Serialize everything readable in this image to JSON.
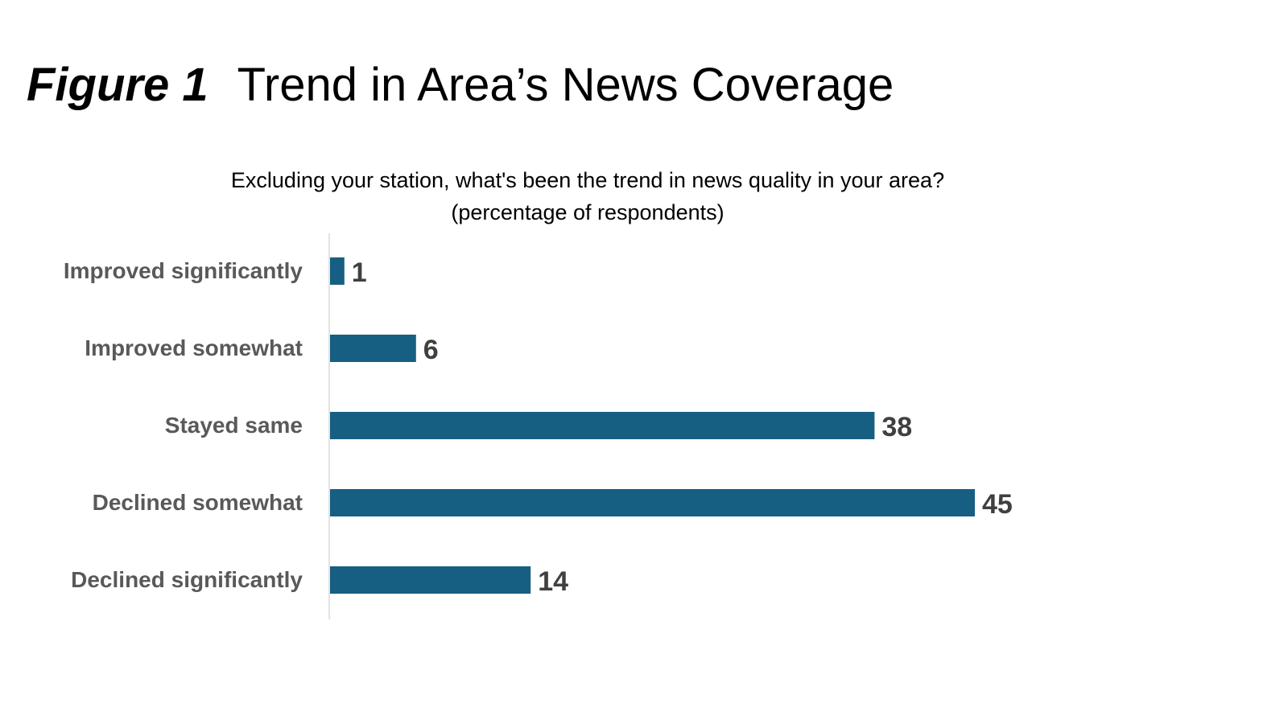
{
  "title": {
    "figure_label": "Figure 1",
    "text": "Trend in Area’s News Coverage"
  },
  "chart_data": {
    "type": "bar",
    "orientation": "horizontal",
    "subtitle_line1": "Excluding your station, what's been the trend in news quality in your area?",
    "subtitle_line2": "(percentage of respondents)",
    "categories": [
      "Improved significantly",
      "Improved somewhat",
      "Stayed same",
      "Declined somewhat",
      "Declined significantly"
    ],
    "values": [
      1,
      6,
      38,
      45,
      14
    ],
    "xlim": [
      0,
      45
    ],
    "grid": false,
    "data_labels": true,
    "colors": {
      "bar": "#175F82",
      "category_label": "#595959",
      "value_label": "#404040",
      "axis": "#D9D9D9"
    }
  }
}
